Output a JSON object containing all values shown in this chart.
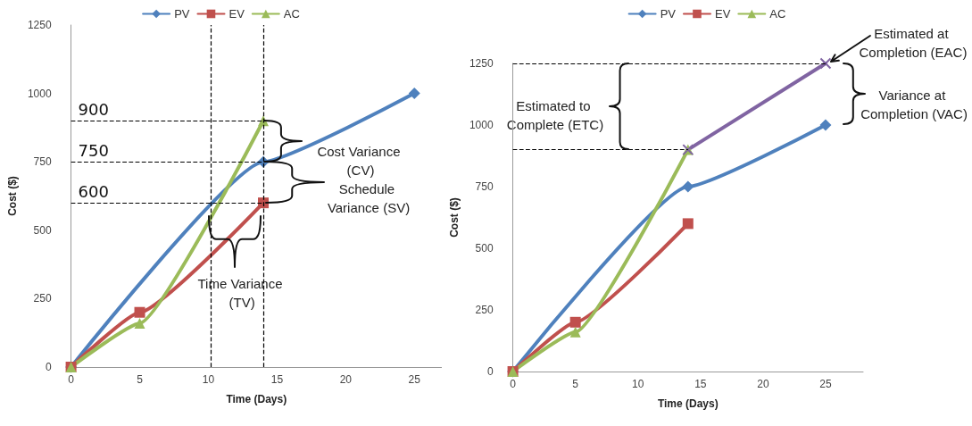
{
  "chart_data": [
    {
      "type": "line",
      "xlabel": "Time (Days)",
      "ylabel": "Cost ($)",
      "xlim": [
        0,
        27
      ],
      "xticks": [
        0,
        5,
        10,
        15,
        20,
        25
      ],
      "ylim": [
        0,
        1250
      ],
      "yticks": [
        0,
        250,
        500,
        750,
        1000,
        1250
      ],
      "grid": false,
      "legend": "top",
      "series": [
        {
          "name": "PV",
          "color": "#4f81bd",
          "marker": "diamond",
          "x": [
            0,
            5,
            14,
            25
          ],
          "values": [
            0,
            null,
            750,
            1000
          ]
        },
        {
          "name": "EV",
          "color": "#c0504d",
          "marker": "square",
          "x": [
            0,
            5,
            14
          ],
          "values": [
            0,
            200,
            600
          ]
        },
        {
          "name": "AC",
          "color": "#9bbb59",
          "marker": "triangle",
          "x": [
            0,
            5,
            14
          ],
          "values": [
            0,
            160,
            900
          ]
        }
      ],
      "ref_lines": [
        {
          "axis": "y",
          "value": 900,
          "label": "900",
          "line_style": "dashed"
        },
        {
          "axis": "y",
          "value": 750,
          "label": "750",
          "line_style": "dashed"
        },
        {
          "axis": "y",
          "value": 600,
          "label": "600",
          "line_style": "dashed"
        },
        {
          "axis": "x",
          "value": 10.2,
          "label": null,
          "line_style": "dashed"
        },
        {
          "axis": "x",
          "value": 14,
          "label": null,
          "line_style": "dashed"
        }
      ],
      "annotations": [
        "Cost Variance (CV)",
        "Schedule Variance (SV)",
        "Time Variance (TV)"
      ]
    },
    {
      "type": "line",
      "xlabel": "Time (Days)",
      "ylabel": "Cost ($)",
      "xlim": [
        0,
        28
      ],
      "xticks": [
        0,
        5,
        10,
        15,
        20,
        25
      ],
      "ylim": [
        0,
        1250
      ],
      "yticks": [
        0,
        250,
        500,
        750,
        1000,
        1250
      ],
      "grid": false,
      "legend": "top",
      "series": [
        {
          "name": "PV",
          "color": "#4f81bd",
          "marker": "diamond",
          "x": [
            0,
            5,
            14,
            25
          ],
          "values": [
            0,
            null,
            750,
            1000
          ]
        },
        {
          "name": "EV",
          "color": "#c0504d",
          "marker": "square",
          "x": [
            0,
            5,
            14
          ],
          "values": [
            0,
            200,
            600
          ]
        },
        {
          "name": "AC",
          "color": "#9bbb59",
          "marker": "triangle",
          "x": [
            0,
            5,
            14
          ],
          "values": [
            0,
            160,
            900
          ]
        },
        {
          "color": "#8064a2",
          "marker": "cross",
          "x": [
            14,
            25
          ],
          "values": [
            900,
            1250
          ]
        }
      ],
      "ref_lines": [
        {
          "axis": "y",
          "value": 1250,
          "label": null,
          "line_style": "dashed"
        },
        {
          "axis": "y",
          "value": 900,
          "label": null,
          "line_style": "dashed"
        }
      ],
      "annotations": [
        "Estimated to Complete (ETC)",
        {
          "text": "Estimated at Completion (EAC)",
          "x": 25,
          "y": 1250
        },
        "Variance at Completion (VAC)"
      ]
    }
  ]
}
